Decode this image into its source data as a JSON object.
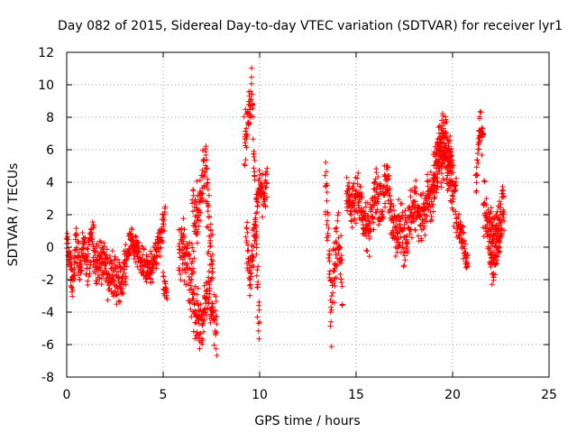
{
  "chart_data": {
    "type": "scatter",
    "title": "Day 082 of 2015, Sidereal Day-to-day VTEC variation (SDTVAR) for receiver lyr1",
    "xlabel": "GPS time / hours",
    "ylabel": "SDTVAR / TECUs",
    "xlim": [
      0,
      25
    ],
    "ylim": [
      -8,
      12
    ],
    "xticks": [
      0,
      5,
      10,
      15,
      20,
      25
    ],
    "yticks": [
      -8,
      -6,
      -4,
      -2,
      0,
      2,
      4,
      6,
      8,
      10,
      12
    ],
    "xtick_labels": [
      "0",
      "5",
      "10",
      "15",
      "20",
      "25"
    ],
    "ytick_labels": [
      "-8",
      "-6",
      "-4",
      "-2",
      "0",
      "2",
      "4",
      "6",
      "8",
      "10",
      "12"
    ],
    "grid": true,
    "marker": "+",
    "marker_color": "#ff0000",
    "series": [
      {
        "name": "SDTVAR",
        "segments": [
          {
            "x": [
              0.0,
              0.15,
              0.3,
              0.5,
              0.7,
              0.9,
              1.0
            ],
            "y": [
              0.5,
              -1.0,
              -2.0,
              0.0,
              -1.5,
              0.5,
              -1.0
            ],
            "spread": 1.4
          },
          {
            "x": [
              1.0,
              1.3,
              1.6,
              1.9,
              2.2,
              2.5,
              2.8,
              3.1
            ],
            "y": [
              -1.0,
              0.5,
              -1.5,
              -0.5,
              -2.0,
              -1.5,
              -2.5,
              -1.0
            ],
            "spread": 1.8
          },
          {
            "x": [
              3.1,
              3.4,
              3.7,
              4.0,
              4.3,
              4.6,
              4.9,
              5.1
            ],
            "y": [
              -0.5,
              0.5,
              -0.5,
              -1.0,
              -1.5,
              -0.5,
              0.5,
              2.0
            ],
            "spread": 1.2
          },
          {
            "x": [
              5.0,
              5.1,
              5.2
            ],
            "y": [
              -2.0,
              -2.5,
              -3.0
            ],
            "spread": 0.8
          },
          {
            "x": [
              5.8,
              6.1,
              6.4,
              6.7,
              7.0,
              7.3,
              7.6,
              7.8
            ],
            "y": [
              -0.5,
              0.0,
              -2.0,
              -4.0,
              -5.0,
              -2.0,
              -4.0,
              -5.0
            ],
            "spread": 2.2
          },
          {
            "x": [
              6.5,
              6.8,
              7.0,
              7.2,
              7.4,
              7.6
            ],
            "y": [
              1.0,
              2.0,
              3.5,
              5.0,
              0.5,
              -1.5
            ],
            "spread": 2.5
          },
          {
            "x": [
              9.2,
              9.4,
              9.6,
              9.7,
              9.8,
              9.9,
              10.0
            ],
            "y": [
              6.5,
              8.0,
              10.0,
              6.0,
              2.0,
              -3.0,
              -4.5
            ],
            "spread": 2.0
          },
          {
            "x": [
              9.3,
              9.5,
              10.0,
              10.2,
              10.4
            ],
            "y": [
              1.0,
              -2.0,
              4.0,
              3.0,
              4.2
            ],
            "spread": 1.5
          },
          {
            "x": [
              13.4,
              13.5,
              13.7,
              13.9,
              14.1,
              14.3
            ],
            "y": [
              3.5,
              2.0,
              -4.0,
              -1.0,
              0.0,
              -2.0
            ],
            "spread": 2.5
          },
          {
            "x": [
              14.5,
              14.8,
              15.1,
              15.4,
              15.7,
              16.0,
              16.3,
              16.6,
              16.9,
              17.2
            ],
            "y": [
              3.0,
              2.5,
              3.5,
              2.0,
              1.0,
              3.5,
              2.5,
              4.5,
              1.5,
              0.5
            ],
            "spread": 1.8
          },
          {
            "x": [
              17.2,
              17.5,
              17.8,
              18.1,
              18.4,
              18.7,
              19.0,
              19.3,
              19.6,
              19.9,
              20.2
            ],
            "y": [
              1.5,
              0.5,
              1.5,
              2.5,
              1.5,
              3.0,
              3.5,
              5.5,
              5.5,
              4.0,
              2.5
            ],
            "spread": 2.0
          },
          {
            "x": [
              19.0,
              19.3,
              19.5,
              19.7,
              20.0
            ],
            "y": [
              4.5,
              6.0,
              7.0,
              6.5,
              5.0
            ],
            "spread": 1.8
          },
          {
            "x": [
              20.2,
              20.5,
              20.8
            ],
            "y": [
              1.5,
              0.5,
              -1.0
            ],
            "spread": 1.2
          },
          {
            "x": [
              21.2,
              21.4,
              21.6
            ],
            "y": [
              4.0,
              7.5,
              6.5
            ],
            "spread": 1.5
          },
          {
            "x": [
              21.6,
              21.9,
              22.2,
              22.5,
              22.7
            ],
            "y": [
              2.5,
              1.5,
              0.5,
              1.5,
              3.0
            ],
            "spread": 2.0
          },
          {
            "x": [
              21.9,
              22.1,
              22.3,
              22.5
            ],
            "y": [
              -0.5,
              -1.0,
              0.0,
              1.0
            ],
            "spread": 1.5
          }
        ]
      }
    ]
  }
}
